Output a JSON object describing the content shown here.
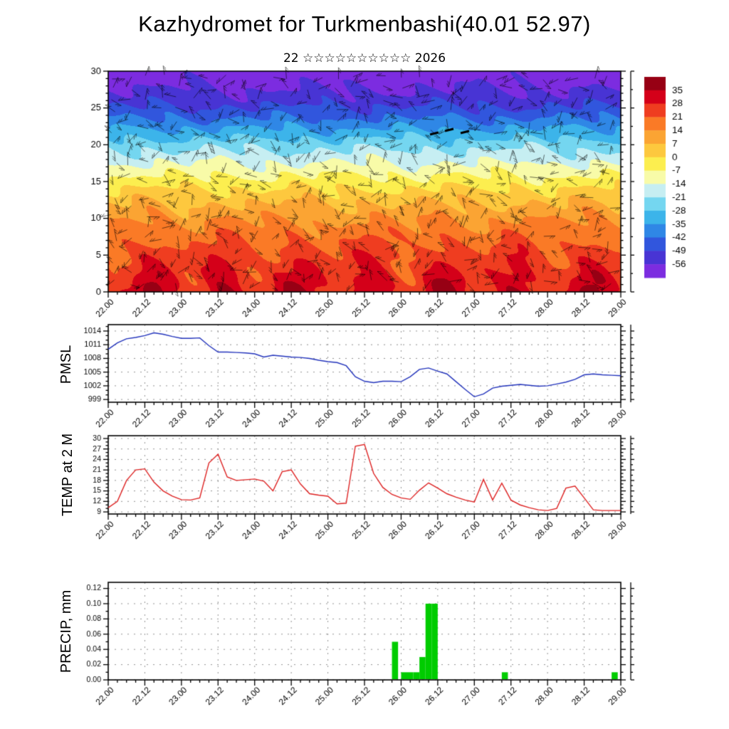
{
  "header": {
    "title": "Kazhydromet for Turkmenbashi(40.01 52.97)",
    "subtitle": "22 ☆☆☆☆☆☆☆☆☆☆ 2026"
  },
  "x_axis": {
    "hours_span": 168,
    "major_step_h": 12,
    "minor_step_h": 3,
    "tick_labels": [
      "22.00",
      "22.12",
      "23.00",
      "23.12",
      "24.00",
      "24.12",
      "25.00",
      "25.12",
      "26.00",
      "26.12",
      "27.00",
      "27.12",
      "28.00",
      "28.12",
      "29.00"
    ]
  },
  "chart_data": [
    {
      "type": "heatmap",
      "name": "temperature-height-cross-section",
      "ylabel": "",
      "y_ticks": [
        0,
        5,
        10,
        15,
        20,
        25,
        30
      ],
      "y_range": [
        0,
        30
      ],
      "wind_barbs": true,
      "field_model": {
        "profile": [
          [
            0,
            30
          ],
          [
            2,
            28
          ],
          [
            5,
            24
          ],
          [
            8,
            18
          ],
          [
            10,
            13
          ],
          [
            12,
            7
          ],
          [
            14,
            0
          ],
          [
            16,
            -8
          ],
          [
            18,
            -16
          ],
          [
            20,
            -24
          ],
          [
            22,
            -34
          ],
          [
            24,
            -44
          ],
          [
            26,
            -52
          ],
          [
            28,
            -57
          ],
          [
            30,
            -61
          ]
        ],
        "diurnal_amplitude": 7,
        "diurnal_decay_z": 6,
        "wiggle": [
          [
            2.2,
            0.35,
            0.8
          ],
          [
            1.8,
            0.13,
            -0.5
          ],
          [
            1.5,
            0.53,
            1.7
          ]
        ]
      },
      "colorbar": {
        "boundary_labels": [
          35,
          28,
          21,
          14,
          7,
          0,
          -7,
          -14,
          -21,
          -28,
          -35,
          -42,
          -49,
          -56
        ],
        "segment_colors_top_to_bottom": [
          "#970014",
          "#d40019",
          "#ef3d20",
          "#fa7a26",
          "#fba433",
          "#fdc83e",
          "#fcee4f",
          "#f8fba8",
          "#c6eef2",
          "#74d6f0",
          "#3cb4ea",
          "#2f87e6",
          "#3156dd",
          "#4834d4",
          "#7c2ce0"
        ]
      }
    },
    {
      "type": "line",
      "name": "pmsl",
      "ylabel": "PMSL",
      "color": "#2233bb",
      "y_ticks": [
        999,
        1002,
        1005,
        1008,
        1011,
        1014
      ],
      "y_range": [
        998.4,
        1015.4
      ],
      "step_h": 3,
      "values": [
        1010.0,
        1011.4,
        1012.3,
        1012.6,
        1013.0,
        1013.6,
        1013.3,
        1012.8,
        1012.4,
        1012.4,
        1012.5,
        1010.8,
        1009.4,
        1009.4,
        1009.3,
        1009.2,
        1009.0,
        1008.3,
        1008.7,
        1008.5,
        1008.3,
        1008.2,
        1008.0,
        1007.6,
        1007.3,
        1007.1,
        1006.4,
        1004.0,
        1003.0,
        1002.7,
        1003.0,
        1003.0,
        1002.9,
        1004.0,
        1005.6,
        1005.9,
        1005.2,
        1004.6,
        1002.9,
        1001.2,
        999.6,
        1000.2,
        1001.5,
        1001.9,
        1002.1,
        1002.3,
        1002.1,
        1001.9,
        1002.0,
        1002.4,
        1002.8,
        1003.4,
        1004.4,
        1004.6,
        1004.4,
        1004.3,
        1004.2
      ]
    },
    {
      "type": "line",
      "name": "temp-at-2m",
      "ylabel": "TEMP at 2 M",
      "color": "#dd2222",
      "y_ticks": [
        9,
        12,
        15,
        18,
        21,
        24,
        27,
        30
      ],
      "y_range": [
        8.4,
        30.8
      ],
      "step_h": 3,
      "values": [
        10.2,
        12.0,
        18.0,
        21.0,
        21.3,
        17.5,
        15.0,
        13.5,
        12.5,
        12.4,
        13.0,
        23.0,
        25.5,
        19.0,
        18.0,
        18.2,
        18.4,
        17.8,
        15.0,
        20.5,
        21.0,
        17.0,
        14.2,
        13.8,
        13.5,
        11.3,
        11.5,
        27.8,
        28.3,
        20.0,
        16.0,
        14.0,
        13.0,
        12.6,
        15.2,
        17.3,
        15.8,
        14.2,
        13.2,
        12.4,
        11.8,
        18.3,
        12.4,
        17.2,
        12.4,
        11.0,
        10.2,
        9.6,
        9.4,
        10.0,
        15.8,
        16.4,
        13.0,
        9.6,
        9.4,
        9.4,
        9.4
      ]
    },
    {
      "type": "bar",
      "name": "precip",
      "ylabel": "PRECIP, mm",
      "color": "#00cc00",
      "y_ticks": [
        0,
        0.02,
        0.04,
        0.06,
        0.08,
        0.1,
        0.12
      ],
      "y_range": [
        0,
        0.128
      ],
      "bar_width_h": 2,
      "bars": [
        {
          "h": 93,
          "v": 0.05
        },
        {
          "h": 96,
          "v": 0.01
        },
        {
          "h": 98,
          "v": 0.01
        },
        {
          "h": 100,
          "v": 0.01
        },
        {
          "h": 102,
          "v": 0.03
        },
        {
          "h": 104,
          "v": 0.1
        },
        {
          "h": 106,
          "v": 0.1
        },
        {
          "h": 129,
          "v": 0.01
        },
        {
          "h": 165,
          "v": 0.01
        }
      ]
    }
  ]
}
